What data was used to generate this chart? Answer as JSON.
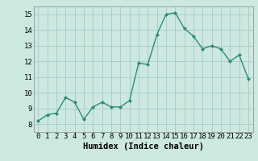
{
  "x": [
    0,
    1,
    2,
    3,
    4,
    5,
    6,
    7,
    8,
    9,
    10,
    11,
    12,
    13,
    14,
    15,
    16,
    17,
    18,
    19,
    20,
    21,
    22,
    23
  ],
  "y": [
    8.2,
    8.6,
    8.7,
    9.7,
    9.4,
    8.3,
    9.1,
    9.4,
    9.1,
    9.1,
    9.5,
    11.9,
    11.8,
    13.7,
    15.0,
    15.1,
    14.1,
    13.6,
    12.8,
    13.0,
    12.8,
    12.0,
    12.4,
    10.9
  ],
  "line_color": "#2e8b7a",
  "marker_color": "#2e8b7a",
  "bg_color": "#cce8e0",
  "grid_color": "#aacfc8",
  "xlabel": "Humidex (Indice chaleur)",
  "ylim": [
    7.5,
    15.5
  ],
  "xlim": [
    -0.5,
    23.5
  ],
  "yticks": [
    8,
    9,
    10,
    11,
    12,
    13,
    14,
    15
  ],
  "xticks": [
    0,
    1,
    2,
    3,
    4,
    5,
    6,
    7,
    8,
    9,
    10,
    11,
    12,
    13,
    14,
    15,
    16,
    17,
    18,
    19,
    20,
    21,
    22,
    23
  ],
  "font_color": "#000000",
  "xlabel_fontsize": 7.5,
  "tick_fontsize": 6.5
}
